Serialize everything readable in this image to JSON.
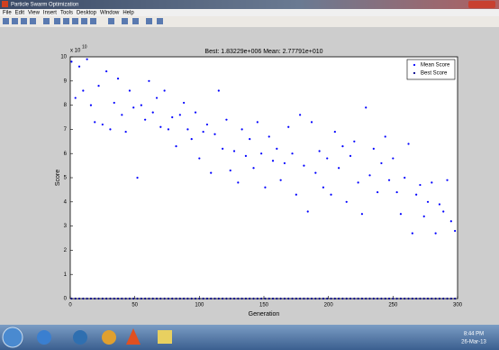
{
  "window": {
    "title": "Particle Swarm Optimization",
    "menu": [
      "File",
      "Edit",
      "View",
      "Insert",
      "Tools",
      "Desktop",
      "Window",
      "Help"
    ]
  },
  "chart_data": {
    "type": "scatter",
    "title": "Best: 1.83229e+006 Mean: 2.77791e+010",
    "x_label": "Generation",
    "y_label": "Score",
    "y_exponent": {
      "base": "x 10",
      "power": "10"
    },
    "x": [
      1,
      4,
      7,
      10,
      13,
      16,
      19,
      22,
      25,
      28,
      31,
      34,
      37,
      40,
      43,
      46,
      49,
      52,
      55,
      58,
      61,
      64,
      67,
      70,
      73,
      76,
      79,
      82,
      85,
      88,
      91,
      94,
      97,
      100,
      103,
      106,
      109,
      112,
      115,
      118,
      121,
      124,
      127,
      130,
      133,
      136,
      139,
      142,
      145,
      148,
      151,
      154,
      157,
      160,
      163,
      166,
      169,
      172,
      175,
      178,
      181,
      184,
      187,
      190,
      193,
      196,
      199,
      202,
      205,
      208,
      211,
      214,
      217,
      220,
      223,
      226,
      229,
      232,
      235,
      238,
      241,
      244,
      247,
      250,
      253,
      256,
      259,
      262,
      265,
      268,
      271,
      274,
      277,
      280,
      283,
      286,
      289,
      292,
      295,
      298
    ],
    "series": [
      {
        "name": "Mean Score",
        "color": "#0000ff",
        "values": [
          9.8,
          8.3,
          9.6,
          8.6,
          9.9,
          8.0,
          7.3,
          8.8,
          7.2,
          9.4,
          7.0,
          8.1,
          9.1,
          7.6,
          6.9,
          8.6,
          7.9,
          5.0,
          8.0,
          7.4,
          9.0,
          7.7,
          8.3,
          7.1,
          8.6,
          7.0,
          7.5,
          6.3,
          7.6,
          8.1,
          7.0,
          6.6,
          7.7,
          5.8,
          6.9,
          7.2,
          5.2,
          6.8,
          8.6,
          6.2,
          7.4,
          5.3,
          6.1,
          4.8,
          7.0,
          5.9,
          6.6,
          5.4,
          7.3,
          6.0,
          4.6,
          6.7,
          5.7,
          6.2,
          4.9,
          5.6,
          7.1,
          6.0,
          4.3,
          7.6,
          5.5,
          3.6,
          7.3,
          5.2,
          6.1,
          4.6,
          5.8,
          4.3,
          6.9,
          5.4,
          6.3,
          4.0,
          5.9,
          6.5,
          4.8,
          3.5,
          7.9,
          5.1,
          6.2,
          4.4,
          5.6,
          6.7,
          4.9,
          5.8,
          4.4,
          3.5,
          5.0,
          6.4,
          2.7,
          4.3,
          4.7,
          3.4,
          4.0,
          4.8,
          2.7,
          3.9,
          3.6,
          4.9,
          3.2,
          2.8
        ]
      },
      {
        "name": "Best Score",
        "color": "#00008b",
        "values": [
          0,
          0,
          0,
          0,
          0,
          0,
          0,
          0,
          0,
          0,
          0,
          0,
          0,
          0,
          0,
          0,
          0,
          0,
          0,
          0,
          0,
          0,
          0,
          0,
          0,
          0,
          0,
          0,
          0,
          0,
          0,
          0,
          0,
          0,
          0,
          0,
          0,
          0,
          0,
          0,
          0,
          0,
          0,
          0,
          0,
          0,
          0,
          0,
          0,
          0,
          0,
          0,
          0,
          0,
          0,
          0,
          0,
          0,
          0,
          0,
          0,
          0,
          0,
          0,
          0,
          0,
          0,
          0,
          0,
          0,
          0,
          0,
          0,
          0,
          0,
          0,
          0,
          0,
          0,
          0,
          0,
          0,
          0,
          0,
          0,
          0,
          0,
          0,
          0,
          0,
          0,
          0,
          0,
          0,
          0,
          0,
          0,
          0,
          0,
          0
        ]
      }
    ],
    "xlim": [
      0,
      300
    ],
    "xticks": [
      0,
      50,
      100,
      150,
      200,
      250,
      300
    ],
    "ylim": [
      0,
      10
    ],
    "yticks": [
      0,
      1,
      2,
      3,
      4,
      5,
      6,
      7,
      8,
      9,
      10
    ],
    "grid": false,
    "legend": "upper right"
  },
  "taskbar": {
    "time": "8:44 PM",
    "date": "26-Mar-13"
  }
}
